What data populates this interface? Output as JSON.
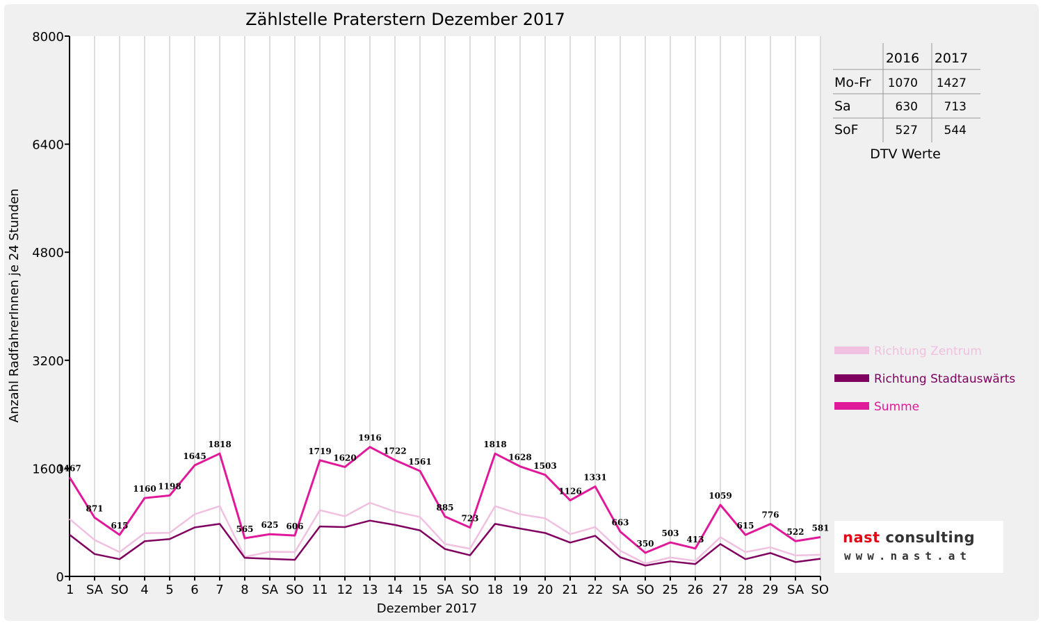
{
  "chart_data": {
    "type": "line",
    "title": "Zählstelle Praterstern Dezember 2017",
    "xlabel": "Dezember 2017",
    "ylabel": "Anzahl RadfahrerInnen je 24 Stunden",
    "ylim": [
      0,
      8000
    ],
    "yticks": [
      "0",
      "1600",
      "3200",
      "4800",
      "6400",
      "8000"
    ],
    "grid": "vertical",
    "legend_position": "right",
    "categories": [
      "1",
      "SA",
      "SO",
      "4",
      "5",
      "6",
      "7",
      "8",
      "SA",
      "SO",
      "11",
      "12",
      "13",
      "14",
      "15",
      "SA",
      "SO",
      "18",
      "19",
      "20",
      "21",
      "22",
      "SA",
      "SO",
      "25",
      "26",
      "27",
      "28",
      "29",
      "SA",
      "SO"
    ],
    "red_categories": [
      2,
      7,
      9,
      16,
      23,
      24,
      25,
      30
    ],
    "series": [
      {
        "name": "Richtung Zentrum",
        "color": "#f0c0e0",
        "values": [
          850,
          540,
          360,
          640,
          645,
          920,
          1040,
          290,
          365,
          360,
          980,
          890,
          1090,
          960,
          880,
          480,
          410,
          1040,
          920,
          860,
          625,
          730,
          380,
          190,
          280,
          230,
          580,
          360,
          430,
          310,
          320
        ]
      },
      {
        "name": "Richtung Stadtauswärts",
        "color": "#800060",
        "values": [
          617,
          331,
          255,
          520,
          553,
          725,
          778,
          275,
          260,
          246,
          739,
          730,
          826,
          762,
          681,
          405,
          313,
          778,
          708,
          643,
          501,
          601,
          283,
          160,
          223,
          183,
          479,
          255,
          346,
          212,
          261
        ]
      },
      {
        "name": "Summe",
        "color": "#e0189a",
        "values": [
          1467,
          871,
          615,
          1160,
          1198,
          1645,
          1818,
          565,
          625,
          606,
          1719,
          1620,
          1916,
          1722,
          1561,
          885,
          723,
          1818,
          1628,
          1503,
          1126,
          1331,
          663,
          350,
          503,
          413,
          1059,
          615,
          776,
          522,
          581
        ]
      }
    ],
    "data_labels": [
      "1467",
      "871",
      "615",
      "1160",
      "1198",
      "1645",
      "1818",
      "565",
      "625",
      "606",
      "1719",
      "1620",
      "1916",
      "1722",
      "1561",
      "885",
      "723",
      "1818",
      "1628",
      "1503",
      "1126",
      "1331",
      "663",
      "350",
      "503",
      "413",
      "1059",
      "615",
      "776",
      "522",
      "581"
    ]
  },
  "dtv_table": {
    "caption": "DTV Werte",
    "headers": [
      "",
      "2016",
      "2017"
    ],
    "rows": [
      {
        "label": "Mo-Fr",
        "v2016": "1070",
        "v2017": "1427"
      },
      {
        "label": "Sa",
        "v2016": "630",
        "v2017": "713"
      },
      {
        "label": "SoF",
        "v2016": "527",
        "v2017": "544"
      }
    ]
  },
  "logo": {
    "name_part1": "nast",
    "name_part2": "consulting",
    "url": "www.nast.at"
  },
  "colors": {
    "weekday": "#000000",
    "sunday_holiday": "#ff0000"
  }
}
